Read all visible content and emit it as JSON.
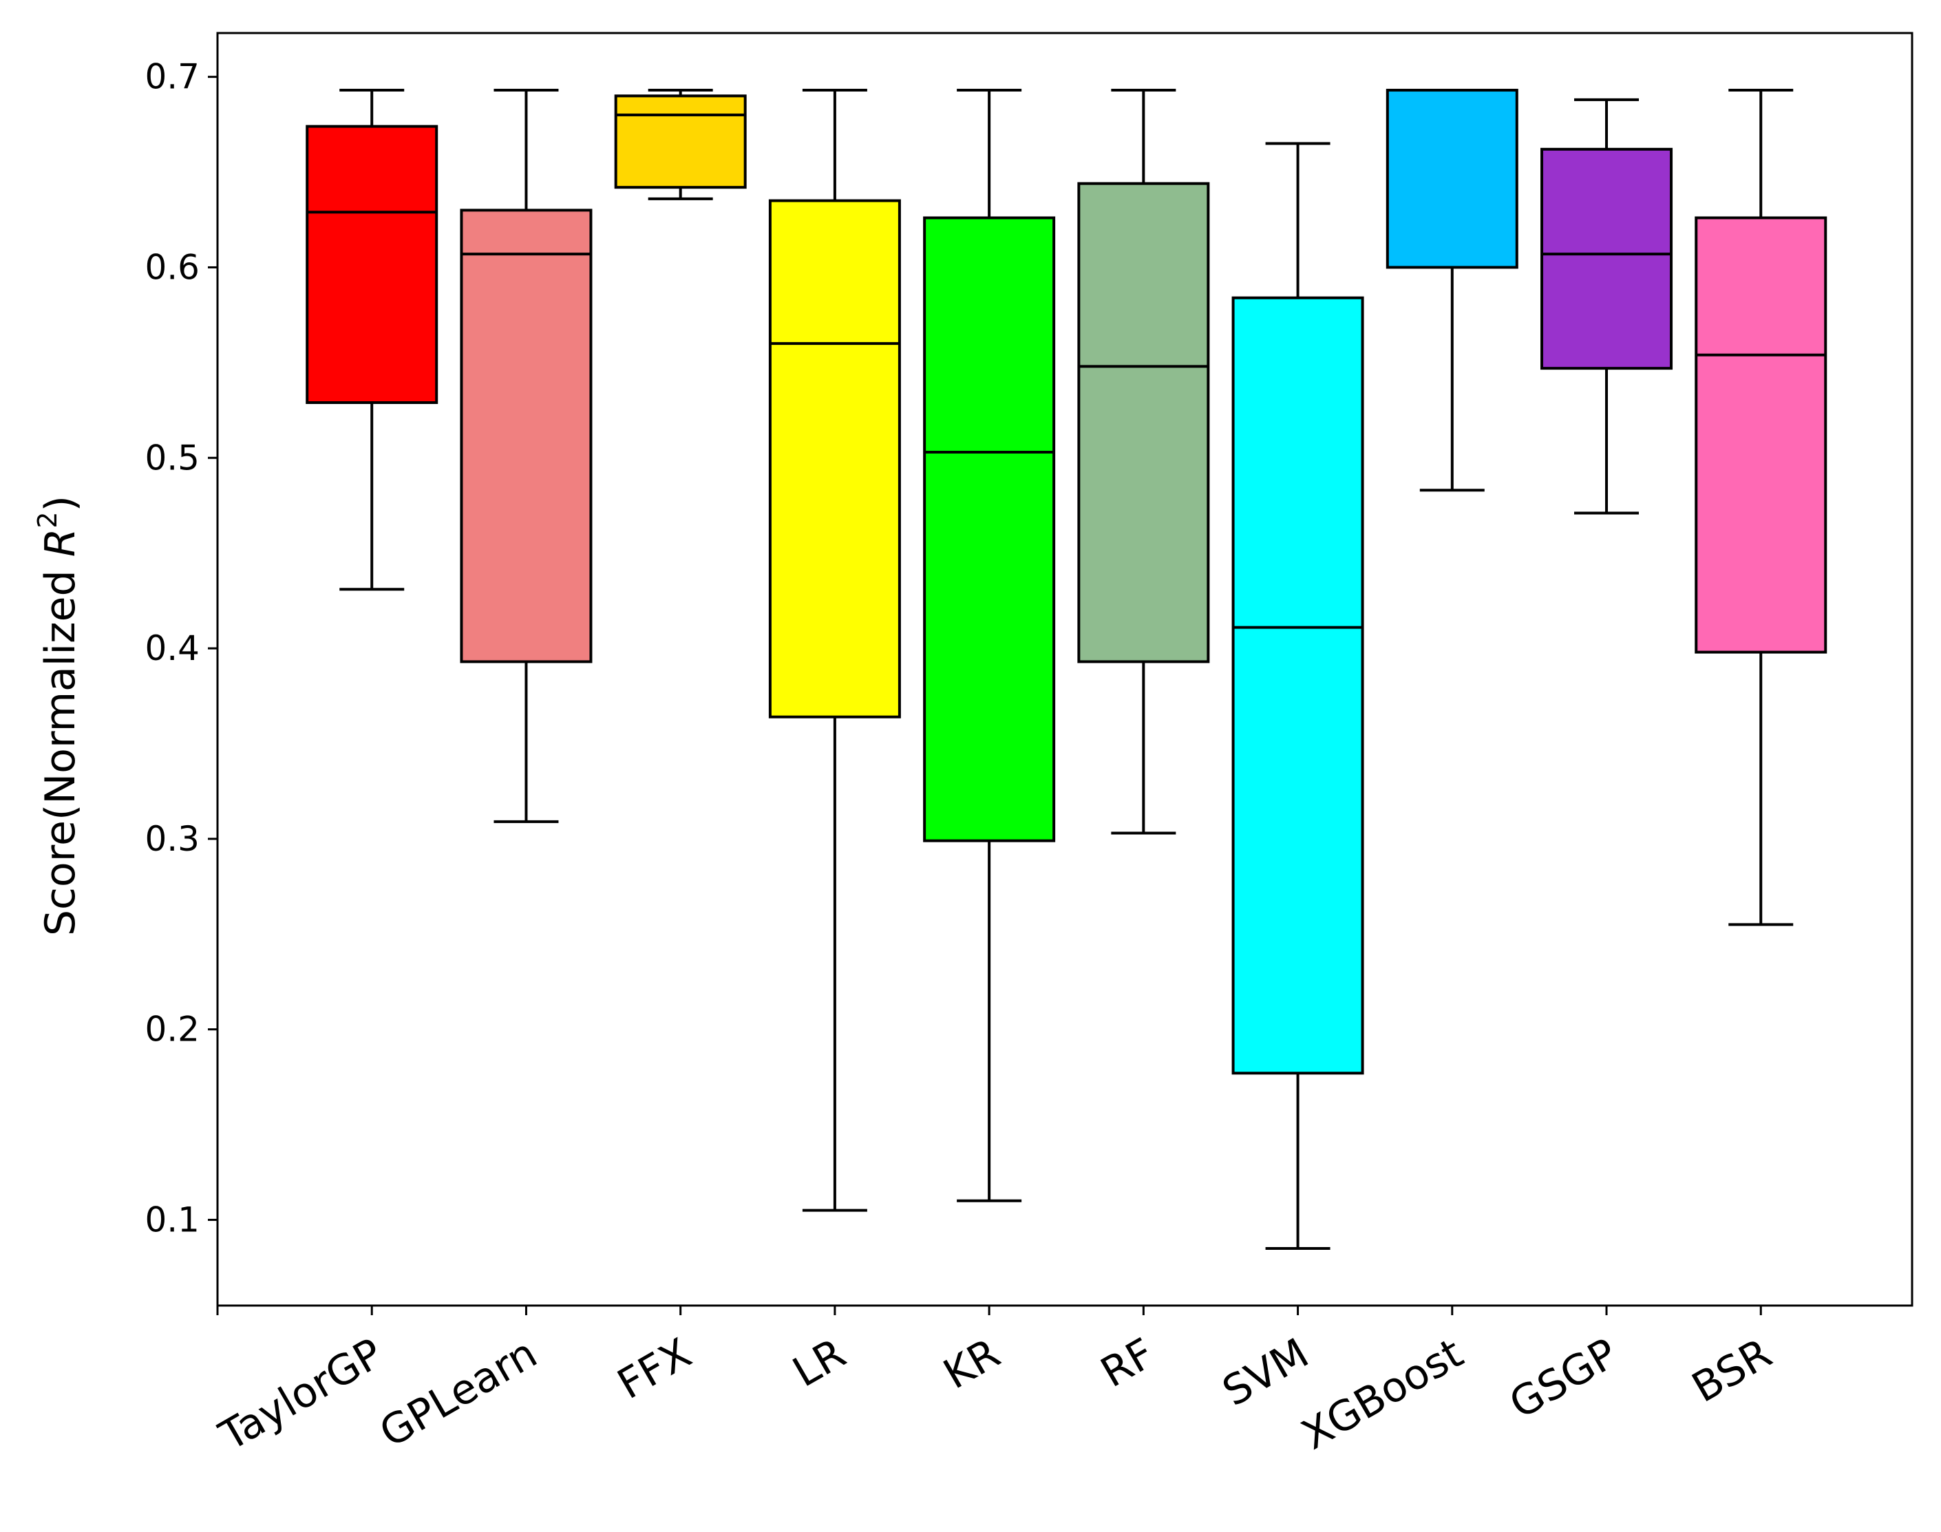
{
  "chart_data": {
    "type": "box",
    "ylabel": "Score(Normalized R²)",
    "ylabel_parts": {
      "prefix": "Score(Normalized ",
      "var": "R",
      "sup": "2",
      "suffix": ")"
    },
    "ylim": [
      0.055,
      0.723
    ],
    "yticks": [
      "0.1",
      "0.2",
      "0.3",
      "0.4",
      "0.5",
      "0.6",
      "0.7"
    ],
    "ytick_values": [
      0.1,
      0.2,
      0.3,
      0.4,
      0.5,
      0.6,
      0.7
    ],
    "grid": false,
    "categories": [
      "TaylorGP",
      "GPLearn",
      "FFX",
      "LR",
      "KR",
      "RF",
      "SVM",
      "XGBoost",
      "GSGP",
      "BSR"
    ],
    "series": [
      {
        "category": "TaylorGP",
        "whisker_low": 0.431,
        "q1": 0.529,
        "median": 0.629,
        "q3": 0.674,
        "whisker_high": 0.693,
        "color": "#ff0000"
      },
      {
        "category": "GPLearn",
        "whisker_low": 0.309,
        "q1": 0.393,
        "median": 0.607,
        "q3": 0.63,
        "whisker_high": 0.693,
        "color": "#f08080"
      },
      {
        "category": "FFX",
        "whisker_low": 0.636,
        "q1": 0.642,
        "median": 0.68,
        "q3": 0.69,
        "whisker_high": 0.693,
        "color": "#ffd700"
      },
      {
        "category": "LR",
        "whisker_low": 0.105,
        "q1": 0.364,
        "median": 0.56,
        "q3": 0.635,
        "whisker_high": 0.693,
        "color": "#ffff00"
      },
      {
        "category": "KR",
        "whisker_low": 0.11,
        "q1": 0.299,
        "median": 0.503,
        "q3": 0.626,
        "whisker_high": 0.693,
        "color": "#00ff00"
      },
      {
        "category": "RF",
        "whisker_low": 0.303,
        "q1": 0.393,
        "median": 0.548,
        "q3": 0.644,
        "whisker_high": 0.693,
        "color": "#8fbc8f"
      },
      {
        "category": "SVM",
        "whisker_low": 0.085,
        "q1": 0.177,
        "median": 0.411,
        "q3": 0.584,
        "whisker_high": 0.665,
        "color": "#00ffff"
      },
      {
        "category": "XGBoost",
        "whisker_low": 0.483,
        "q1": 0.6,
        "median": 0.693,
        "q3": 0.693,
        "whisker_high": 0.693,
        "color": "#00bfff"
      },
      {
        "category": "GSGP",
        "whisker_low": 0.471,
        "q1": 0.547,
        "median": 0.607,
        "q3": 0.662,
        "whisker_high": 0.688,
        "color": "#9932cc"
      },
      {
        "category": "BSR",
        "whisker_low": 0.255,
        "q1": 0.398,
        "median": 0.554,
        "q3": 0.626,
        "whisker_high": 0.693,
        "color": "#ff69b4"
      }
    ]
  }
}
